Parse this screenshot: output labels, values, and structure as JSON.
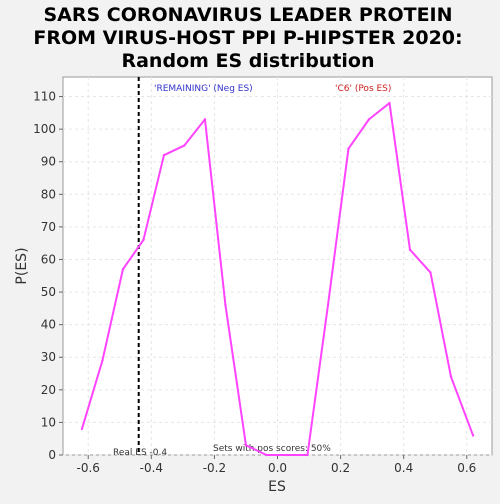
{
  "chart_data": {
    "type": "line",
    "title": [
      "SARS CORONAVIRUS LEADER PROTEIN",
      "FROM VIRUS-HOST PPI P-HIPSTER 2020:",
      "Random ES distribution"
    ],
    "xlabel": "ES",
    "ylabel": "P(ES)",
    "xlim": [
      -0.68,
      0.68
    ],
    "ylim": [
      0,
      116
    ],
    "xticks": [
      "-0.6",
      "-0.4",
      "-0.2",
      "0.0",
      "0.2",
      "0.4",
      "0.6"
    ],
    "xtick_values": [
      -0.6,
      -0.4,
      -0.2,
      0.0,
      0.2,
      0.4,
      0.6
    ],
    "yticks": [
      "0",
      "10",
      "20",
      "30",
      "40",
      "50",
      "60",
      "70",
      "80",
      "90",
      "100",
      "110"
    ],
    "ytick_values": [
      0,
      10,
      20,
      30,
      40,
      50,
      60,
      70,
      80,
      90,
      100,
      110
    ],
    "grid": true,
    "series": [
      {
        "color": "#ff44ff",
        "x": [
          -0.62,
          -0.555,
          -0.49,
          -0.425,
          -0.36,
          -0.295,
          -0.23,
          -0.165,
          -0.1,
          -0.035,
          0.03,
          0.095,
          0.16,
          0.225,
          0.29,
          0.355,
          0.42,
          0.485,
          0.55,
          0.62
        ],
        "y": [
          8,
          29,
          57,
          66,
          92,
          95,
          103,
          46,
          3,
          0,
          0,
          0,
          46,
          94,
          103,
          108,
          63,
          56,
          24,
          6
        ]
      }
    ],
    "real_es": {
      "value": -0.44,
      "label": "Real ES -0.4"
    },
    "annotations": {
      "left_label": "'REMAINING' (Neg ES)",
      "left_color": "#3333cc",
      "right_label": "'C6' (Pos ES)",
      "right_color": "#cc2222",
      "bottom_center": "Sets with pos scores: 50%"
    }
  }
}
